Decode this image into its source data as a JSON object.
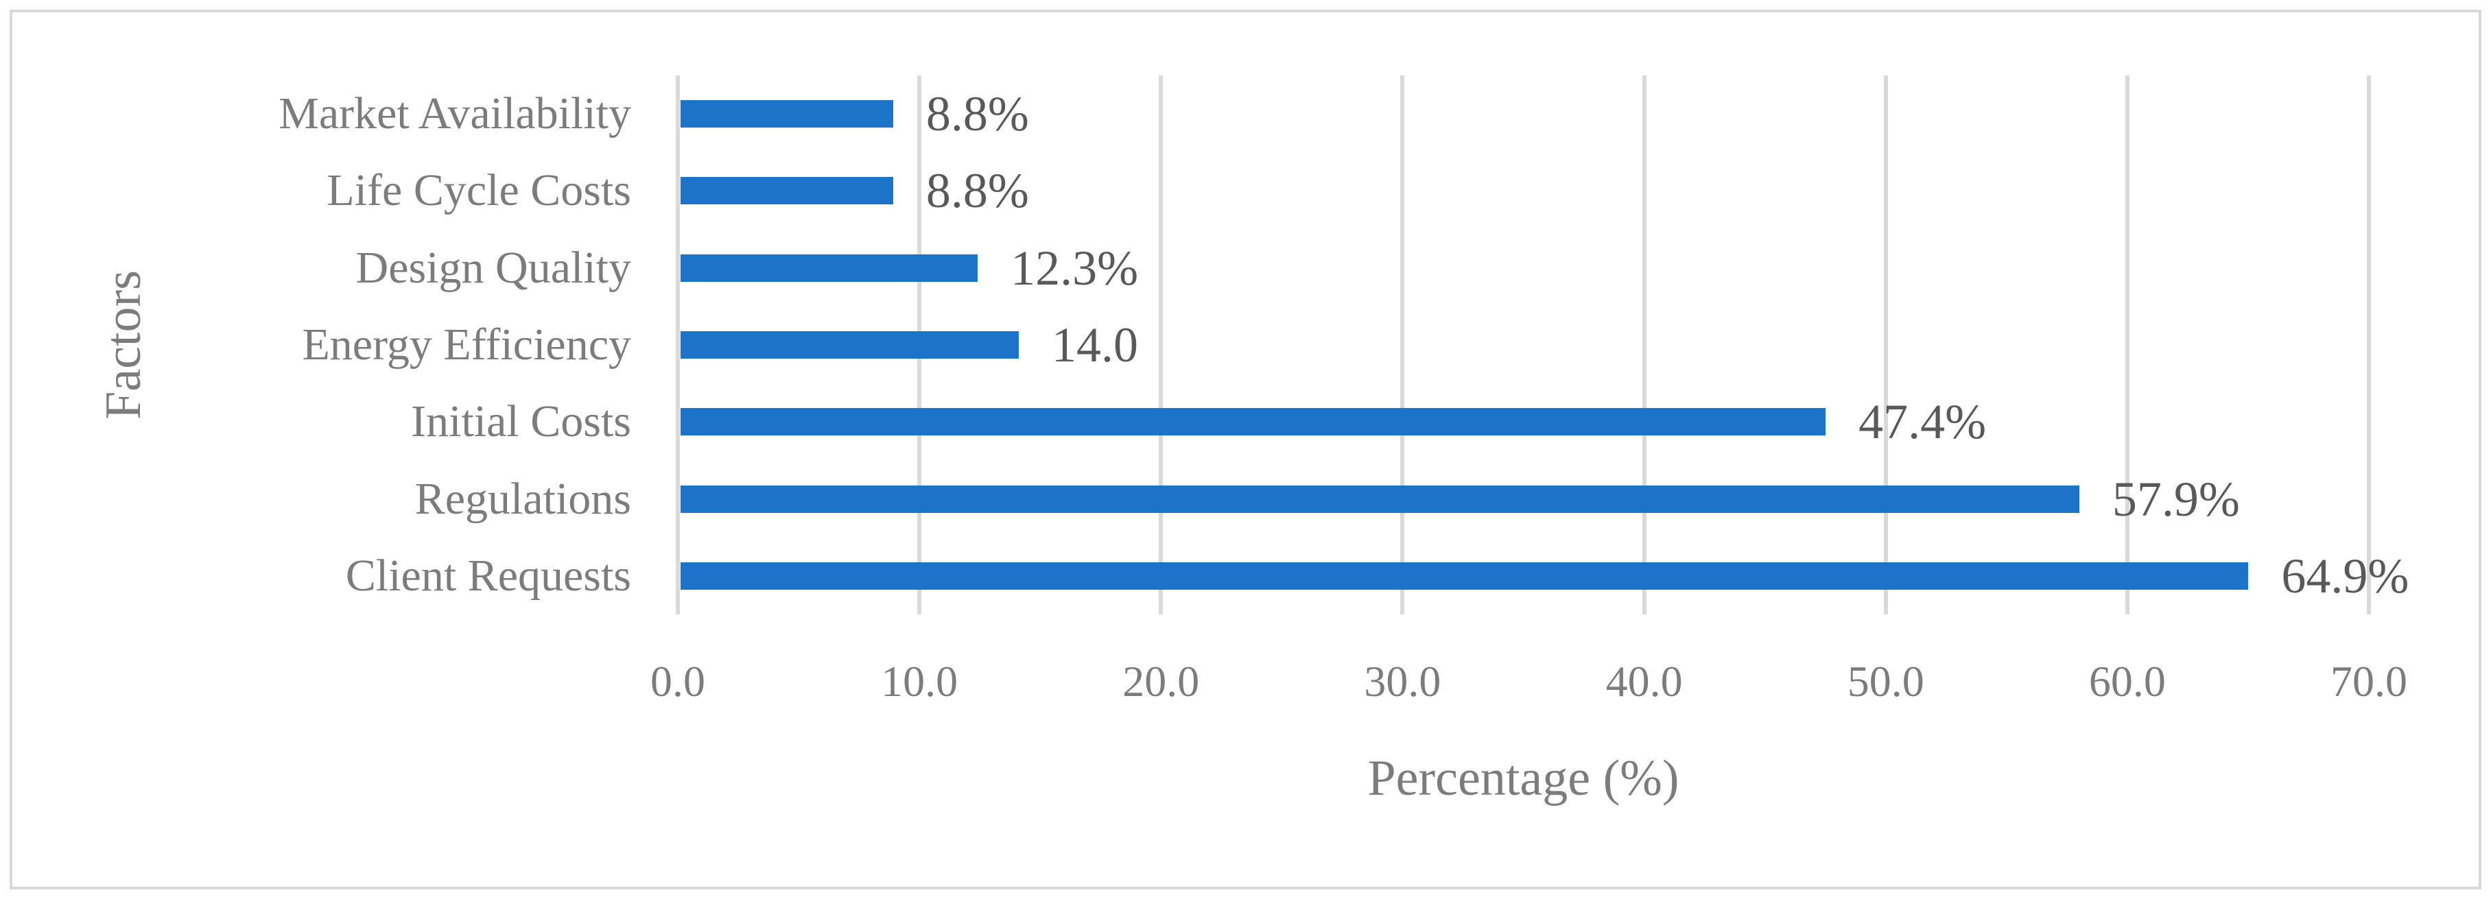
{
  "chart_data": {
    "type": "bar",
    "orientation": "horizontal",
    "title": "",
    "categories": [
      "Market Availability",
      "Life Cycle Costs",
      "Design Quality",
      "Energy Efficiency",
      "Initial Costs",
      "Regulations",
      "Client Requests"
    ],
    "values": [
      8.8,
      8.8,
      12.3,
      14.0,
      47.4,
      57.9,
      64.9
    ],
    "data_labels": [
      "8.8%",
      "8.8%",
      "12.3%",
      "14.0",
      "47.4%",
      "57.9%",
      "64.9%"
    ],
    "xlabel": "Percentage (%)",
    "ylabel": "Factors",
    "xlim": [
      0,
      70
    ],
    "x_ticks": [
      "0.0",
      "10.0",
      "20.0",
      "30.0",
      "40.0",
      "50.0",
      "60.0",
      "70.0"
    ],
    "grid": "vertical-only",
    "legend": "none",
    "colors": {
      "bar": "#1c73c8",
      "data_label_text": "#595959",
      "axis_text": "#7c7c7c",
      "gridline": "#d9d9d9",
      "frame_border": "#d9d9d9",
      "background": "#ffffff"
    }
  }
}
